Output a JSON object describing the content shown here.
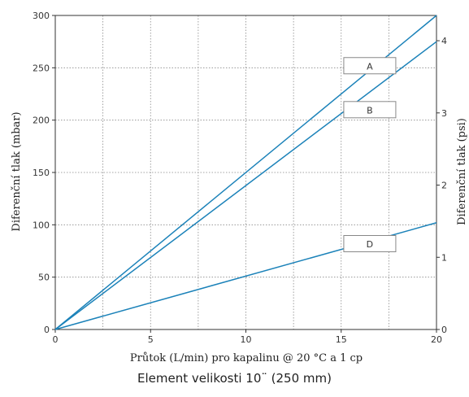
{
  "chart_data": {
    "type": "line",
    "xlabel": "Průtok (L/min) pro kapalinu @ 20 °C a 1 cp",
    "ylabel": "Diferenční tlak (mbar)",
    "ylabel_right": "Diferenční tlak (psi)",
    "xlim": [
      0,
      20
    ],
    "ylim": [
      0,
      300
    ],
    "ylim_right": [
      0,
      4.35
    ],
    "x_ticks": [
      "0",
      "5",
      "10",
      "15",
      "20"
    ],
    "y_ticks": [
      "0",
      "50",
      "100",
      "150",
      "200",
      "250",
      "300"
    ],
    "y_ticks_right": [
      "0",
      "1",
      "2",
      "3",
      "4"
    ],
    "x_grid_step": 2.5,
    "y_grid_step": 50,
    "grid": true,
    "series": [
      {
        "name": "A",
        "x": [
          0,
          20
        ],
        "y": [
          0,
          300
        ],
        "label_x": 16.5,
        "label_y": 252
      },
      {
        "name": "B",
        "x": [
          0,
          20
        ],
        "y": [
          0,
          275
        ],
        "label_x": 16.5,
        "label_y": 210
      },
      {
        "name": "D",
        "x": [
          0,
          20
        ],
        "y": [
          0,
          102
        ],
        "label_x": 16.5,
        "label_y": 82
      }
    ],
    "colors": {
      "line": "#1b82b9",
      "grid": "#888888",
      "axis": "#333333",
      "label_box": "#888888"
    }
  },
  "caption": "Element velikosti 10¨ (250 mm)"
}
